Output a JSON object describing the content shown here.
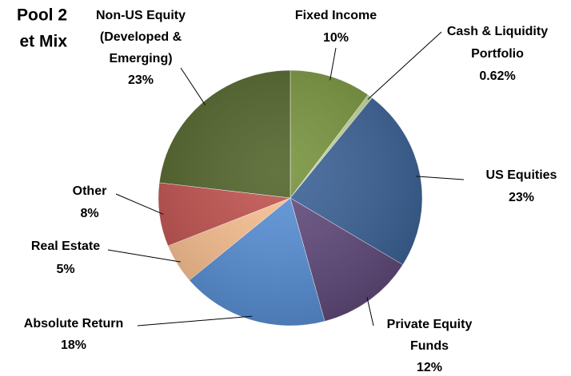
{
  "chart_data": {
    "type": "pie",
    "title_lines": [
      "Pool 2",
      "et Mix"
    ],
    "categories": [
      [
        "Fixed Income"
      ],
      [
        "Cash & Liquidity",
        "Portfolio"
      ],
      [
        "US Equities"
      ],
      [
        "Private Equity",
        "Funds"
      ],
      [
        "Absolute Return"
      ],
      [
        "Real Estate"
      ],
      [
        "Other"
      ],
      [
        "Non-US Equity",
        "(Developed &",
        "Emerging)"
      ]
    ],
    "values": [
      10,
      0.62,
      23,
      12,
      18,
      5,
      8,
      23
    ],
    "value_labels": [
      "10%",
      "0.62%",
      "23%",
      "12%",
      "18%",
      "5%",
      "8%",
      "23%"
    ],
    "colors": [
      "#77933c",
      "#c3d69b",
      "#3a6196",
      "#60497b",
      "#568fd6",
      "#f9bf8f",
      "#c0504d",
      "#4f6228"
    ]
  }
}
